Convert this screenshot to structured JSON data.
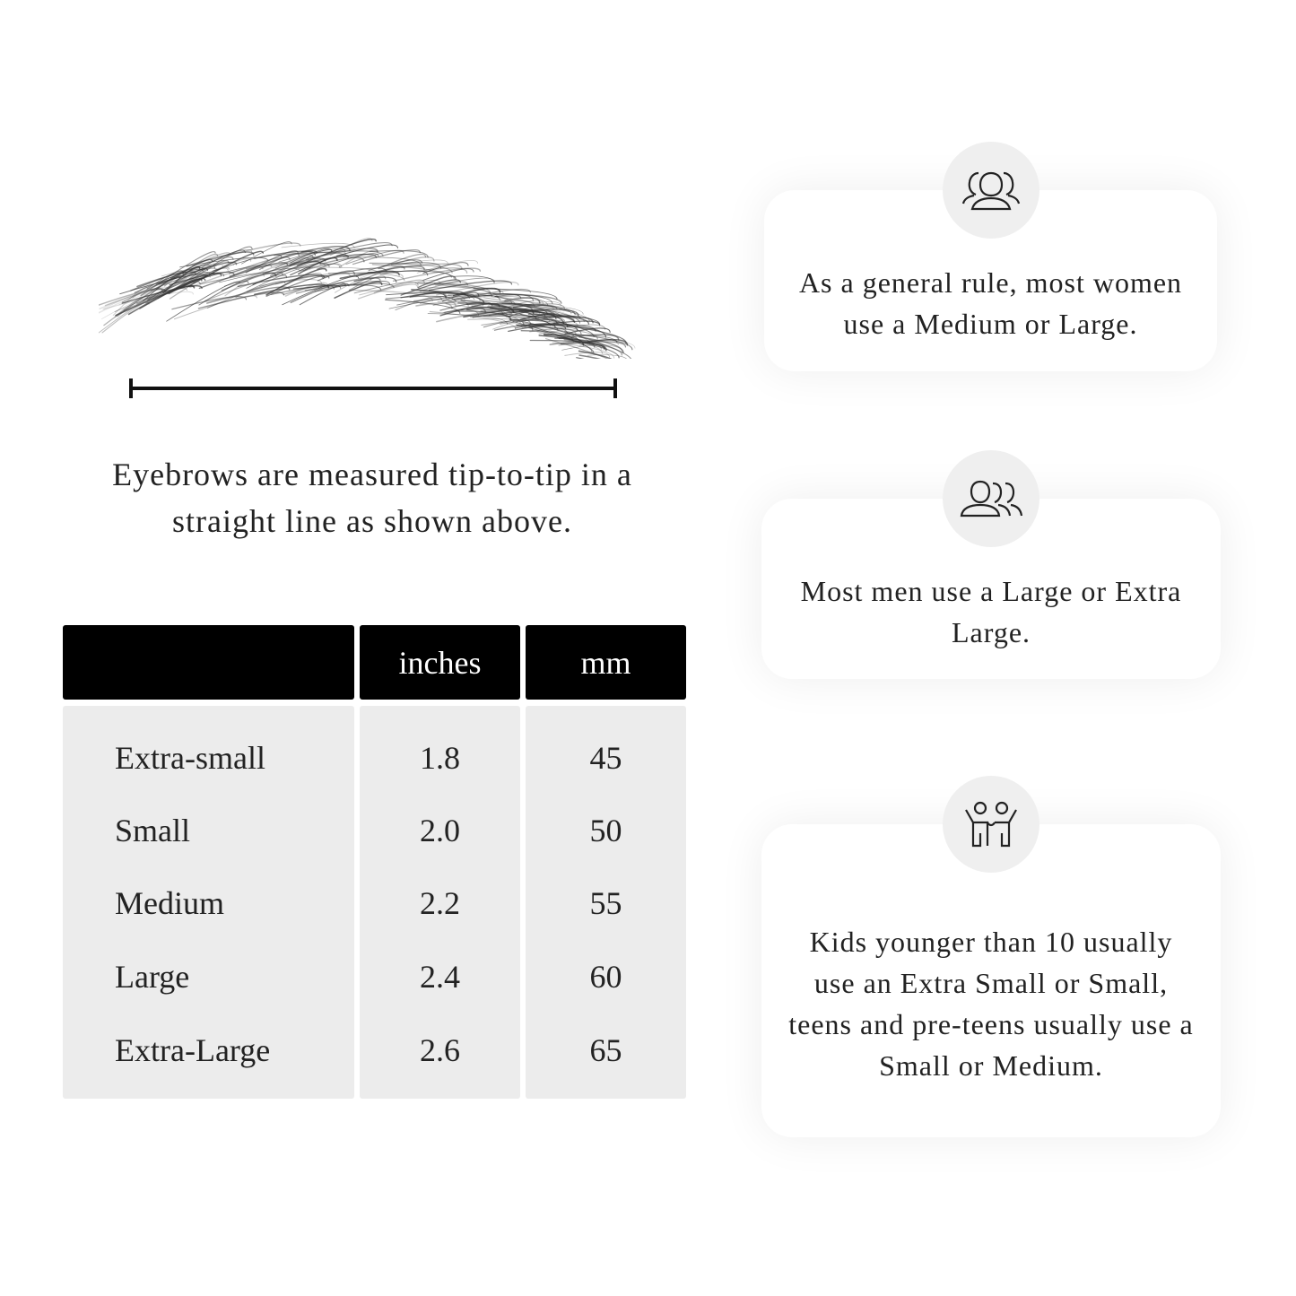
{
  "caption": "Eyebrows are measured tip-to-tip in a straight line as shown above.",
  "table": {
    "headers": [
      "",
      "inches",
      "mm"
    ],
    "rows": [
      {
        "size": "Extra-small",
        "inches": "1.8",
        "mm": "45"
      },
      {
        "size": "Small",
        "inches": "2.0",
        "mm": "50"
      },
      {
        "size": "Medium",
        "inches": "2.2",
        "mm": "55"
      },
      {
        "size": "Large",
        "inches": "2.4",
        "mm": "60"
      },
      {
        "size": "Extra-Large",
        "inches": "2.6",
        "mm": "65"
      }
    ]
  },
  "cards": [
    {
      "icon": "women-group-icon",
      "text": "As a general rule, most women use a Medium or Large."
    },
    {
      "icon": "men-group-icon",
      "text": "Most men use a Large or Extra Large."
    },
    {
      "icon": "kids-icon",
      "text": "Kids younger than 10 usually use an Extra Small or Small, teens and pre-teens usually use a Small or Medium."
    }
  ],
  "colors": {
    "header_bg": "#000000",
    "table_bg": "#ececec",
    "icon_circle": "#efefef"
  }
}
